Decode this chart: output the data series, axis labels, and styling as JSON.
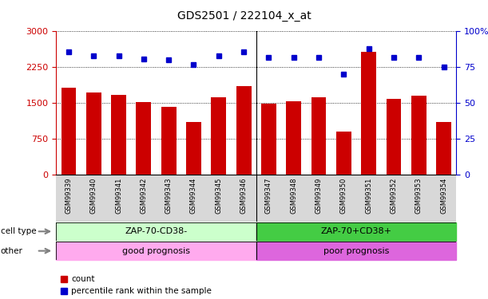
{
  "title": "GDS2501 / 222104_x_at",
  "samples": [
    "GSM99339",
    "GSM99340",
    "GSM99341",
    "GSM99342",
    "GSM99343",
    "GSM99344",
    "GSM99345",
    "GSM99346",
    "GSM99347",
    "GSM99348",
    "GSM99349",
    "GSM99350",
    "GSM99351",
    "GSM99352",
    "GSM99353",
    "GSM99354"
  ],
  "counts": [
    1820,
    1720,
    1680,
    1530,
    1430,
    1100,
    1620,
    1850,
    1490,
    1540,
    1620,
    900,
    2580,
    1590,
    1660,
    1110
  ],
  "percentiles": [
    86,
    83,
    83,
    81,
    80,
    77,
    83,
    86,
    82,
    82,
    82,
    70,
    88,
    82,
    82,
    75
  ],
  "bar_color": "#cc0000",
  "dot_color": "#0000cc",
  "yticks_left": [
    0,
    750,
    1500,
    2250,
    3000
  ],
  "yticks_right": [
    0,
    25,
    50,
    75,
    100
  ],
  "ylim_left": [
    0,
    3000
  ],
  "ylim_right": [
    0,
    100
  ],
  "cell_type_labels": [
    "ZAP-70-CD38-",
    "ZAP-70+CD38+"
  ],
  "other_labels": [
    "good prognosis",
    "poor prognosis"
  ],
  "cell_type_colors_left": "#ccffcc",
  "cell_type_colors_right": "#44cc44",
  "other_colors_left": "#ffaaee",
  "other_colors_right": "#dd66dd",
  "split_index": 8,
  "legend_items": [
    "count",
    "percentile rank within the sample"
  ],
  "legend_colors": [
    "#cc0000",
    "#0000cc"
  ],
  "label_color_left": "#cc0000",
  "label_color_right": "#0000cc",
  "sample_bg_color": "#d8d8d8"
}
